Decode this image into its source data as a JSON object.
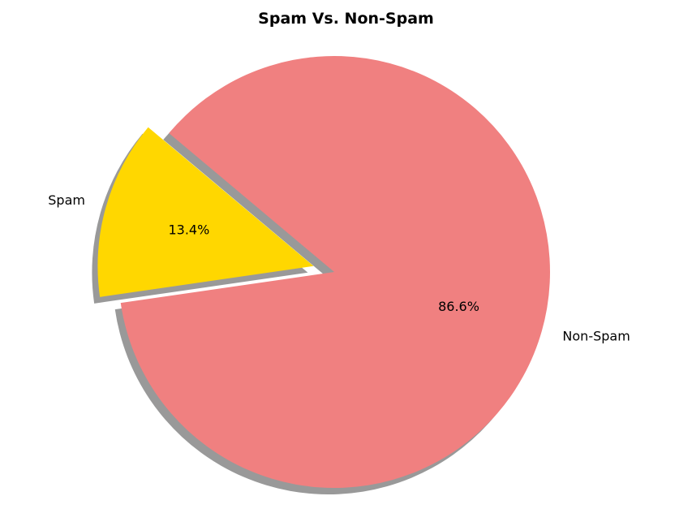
{
  "chart_data": {
    "type": "pie",
    "title": "Spam Vs. Non-Spam",
    "slices": [
      {
        "label": "Spam",
        "value": 13.4,
        "pct_label": "13.4%",
        "color": "#FFD700",
        "explode": 0.1
      },
      {
        "label": "Non-Spam",
        "value": 86.6,
        "pct_label": "86.6%",
        "color": "#F08080",
        "explode": 0
      }
    ],
    "start_angle_deg": 140,
    "shadow": true
  }
}
